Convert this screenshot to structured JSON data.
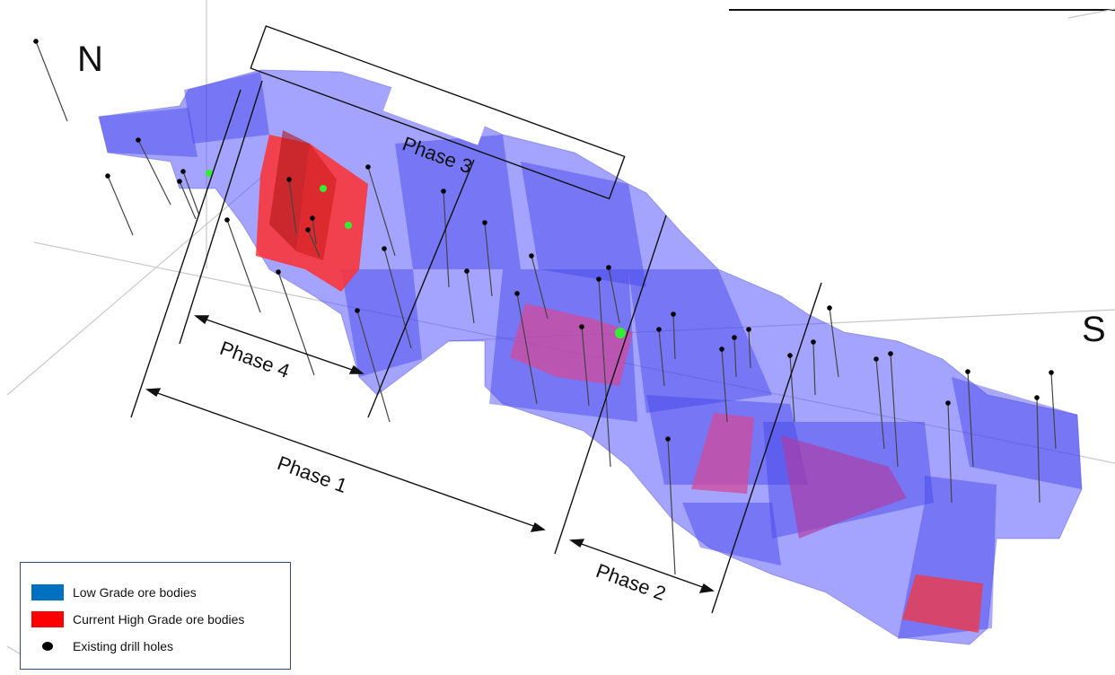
{
  "compass": {
    "north": "N",
    "south": "S"
  },
  "phases": {
    "phase1": "Phase 1",
    "phase2": "Phase 2",
    "phase3": "Phase 3",
    "phase4": "Phase 4"
  },
  "legend": {
    "low_grade": {
      "label": "Low Grade ore bodies",
      "color": "#0070c0"
    },
    "high_grade": {
      "label": "Current High Grade ore bodies",
      "color": "#ff0000"
    },
    "drill_holes": {
      "label": "Existing drill holes",
      "color": "#000000"
    }
  },
  "colors": {
    "ore_body": "#5a5aff",
    "high_grade_body": "#ff3030",
    "marker": "#33ee33"
  }
}
